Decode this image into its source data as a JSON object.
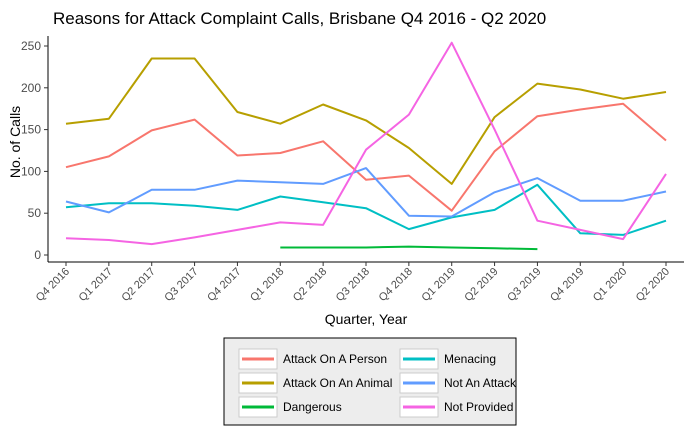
{
  "chart_data": {
    "type": "line",
    "title": "Reasons for Attack Complaint Calls, Brisbane Q4 2016 - Q2 2020",
    "xlabel": "Quarter, Year",
    "ylabel": "No. of Calls",
    "ylim": [
      0,
      260
    ],
    "yticks": [
      0,
      50,
      100,
      150,
      200,
      250
    ],
    "categories": [
      "Q4 2016",
      "Q1 2017",
      "Q2 2017",
      "Q3 2017",
      "Q4 2017",
      "Q1 2018",
      "Q2 2018",
      "Q3 2018",
      "Q4 2018",
      "Q1 2019",
      "Q2 2019",
      "Q3 2019",
      "Q4 2019",
      "Q1 2020",
      "Q2 2020"
    ],
    "series": [
      {
        "name": "Attack On A Person",
        "color": "#F8766D",
        "values": [
          105,
          118,
          149,
          162,
          119,
          122,
          136,
          90,
          95,
          53,
          124,
          166,
          174,
          181,
          137
        ]
      },
      {
        "name": "Attack On An Animal",
        "color": "#B79F00",
        "values": [
          157,
          163,
          235,
          235,
          171,
          157,
          180,
          161,
          128,
          85,
          165,
          205,
          198,
          187,
          195
        ]
      },
      {
        "name": "Dangerous",
        "color": "#00BA38",
        "values": [
          null,
          null,
          null,
          null,
          null,
          9,
          9,
          9,
          10,
          9,
          8,
          7,
          null,
          null,
          null
        ]
      },
      {
        "name": "Menacing",
        "color": "#00BFC4",
        "values": [
          57,
          62,
          62,
          59,
          54,
          70,
          63,
          56,
          31,
          45,
          54,
          84,
          26,
          24,
          41
        ]
      },
      {
        "name": "Not An Attack",
        "color": "#619CFF",
        "values": [
          64,
          51,
          78,
          78,
          89,
          87,
          85,
          104,
          47,
          46,
          75,
          92,
          65,
          65,
          76
        ]
      },
      {
        "name": "Not Provided",
        "color": "#F564E3",
        "values": [
          20,
          18,
          13,
          21,
          30,
          39,
          36,
          126,
          168,
          254,
          150,
          41,
          30,
          19,
          97
        ]
      }
    ],
    "legend": {
      "position": "bottom"
    }
  }
}
